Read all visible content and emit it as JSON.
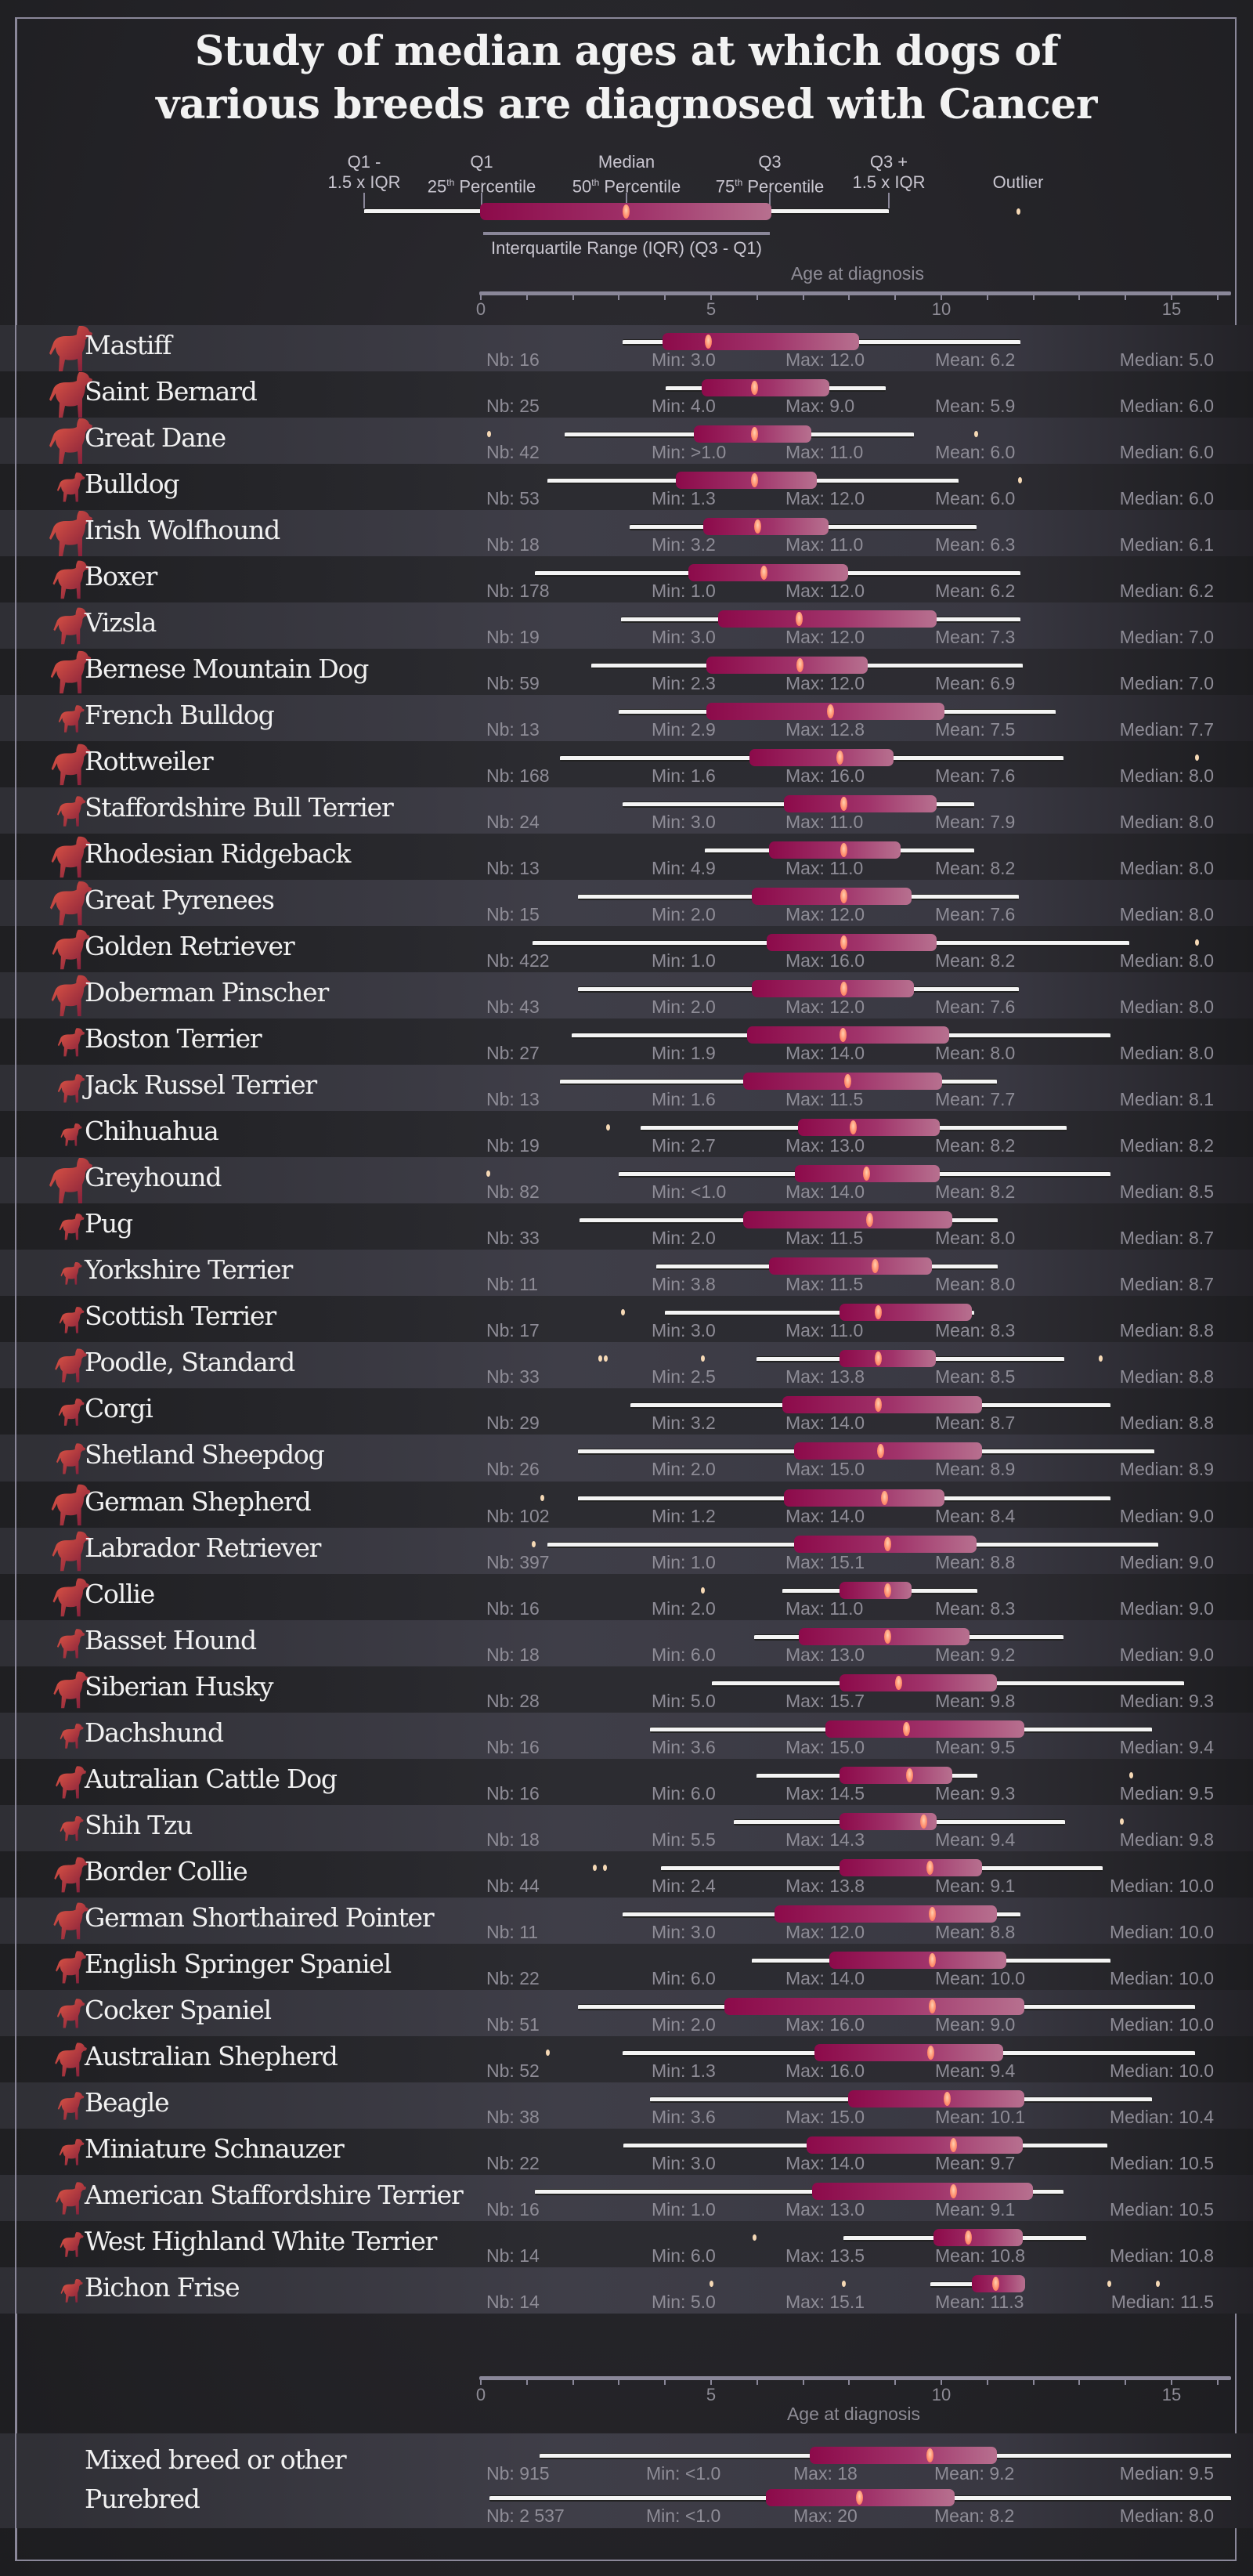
{
  "title_line1": "Study of median ages at which dogs of",
  "title_line2": "various breeds are diagnosed with Cancer",
  "legend": {
    "q1_minus": "Q1 -",
    "q1_minus_sub": "1.5 x IQR",
    "q1": "Q1",
    "q1_sub_num": "25",
    "q1_sub_sup": "th",
    "q1_sub_rest": " Percentile",
    "median": "Median",
    "median_sub_num": "50",
    "median_sub_sup": "th",
    "median_sub_rest": " Percentile",
    "q3": "Q3",
    "q3_sub_num": "75",
    "q3_sub_sup": "th",
    "q3_sub_rest": " Percentile",
    "q3_plus": "Q3 +",
    "q3_plus_sub": "1.5 x IQR",
    "outlier": "Outlier",
    "iqr": "Interquartile Range (IQR) (Q3 - Q1)"
  },
  "axis": {
    "title": "Age at diagnosis",
    "ticks": [
      "0",
      "5",
      "10",
      "15"
    ]
  },
  "colors": {
    "background": "#1c1c1f",
    "box_start": "#8c0a4a",
    "box_end": "#b7708f",
    "median_marker": "#ff8a6a",
    "whisker": "#f4f4f4",
    "outlier": "#f6d9b5",
    "icon_start": "#e65a45",
    "icon_end": "#7a1a3a",
    "frame": "#8a8799"
  },
  "chart_data": {
    "type": "boxplot",
    "title": "Study of median ages at which dogs of various breeds are diagnosed with Cancer",
    "xlabel": "Age at diagnosis",
    "ylabel": "",
    "xlim": [
      0,
      16.3
    ],
    "xticks": [
      0,
      5,
      10,
      15
    ],
    "grid": false,
    "legend_position": "top",
    "columns": [
      "breed",
      "nb",
      "min",
      "max",
      "mean",
      "median",
      "whisker_low",
      "q1",
      "median_pos",
      "q3",
      "whisker_high",
      "outliers"
    ],
    "rows": [
      {
        "breed": "Mastiff",
        "size": 1.0,
        "nb": "16",
        "min": "3.0",
        "max": "12.0",
        "mean": "6.2",
        "median": "5.0",
        "wl": 3.07,
        "q1": 3.94,
        "med": 4.93,
        "q3": 8.22,
        "wh": 11.72,
        "outliers": []
      },
      {
        "breed": "Saint Bernard",
        "size": 1.0,
        "nb": "25",
        "min": "4.0",
        "max": "9.0",
        "mean": "5.9",
        "median": "6.0",
        "wl": 4.02,
        "q1": 4.8,
        "med": 5.94,
        "q3": 7.57,
        "wh": 8.8,
        "outliers": []
      },
      {
        "breed": "Great Dane",
        "size": 1.0,
        "nb": "42",
        "min": ">1.0",
        "max": "11.0",
        "mean": "6.0",
        "median": "6.0",
        "wl": 1.82,
        "q1": 4.62,
        "med": 5.94,
        "q3": 7.17,
        "wh": 9.41,
        "outliers": [
          0.17,
          10.75
        ]
      },
      {
        "breed": "Bulldog",
        "size": 0.45,
        "nb": "53",
        "min": "1.3",
        "max": "12.0",
        "mean": "6.0",
        "median": "6.0",
        "wl": 1.44,
        "q1": 4.23,
        "med": 5.94,
        "q3": 7.3,
        "wh": 10.37,
        "outliers": [
          11.7
        ]
      },
      {
        "breed": "Irish Wolfhound",
        "size": 1.0,
        "nb": "18",
        "min": "3.2",
        "max": "11.0",
        "mean": "6.3",
        "median": "6.1",
        "wl": 3.23,
        "q1": 4.83,
        "med": 6.0,
        "q3": 7.55,
        "wh": 10.77,
        "outliers": []
      },
      {
        "breed": "Boxer",
        "size": 0.75,
        "nb": "178",
        "min": "1.0",
        "max": "12.0",
        "mean": "6.2",
        "median": "6.2",
        "wl": 1.17,
        "q1": 4.51,
        "med": 6.14,
        "q3": 7.98,
        "wh": 11.72,
        "outliers": []
      },
      {
        "breed": "Vizsla",
        "size": 0.7,
        "nb": "19",
        "min": "3.0",
        "max": "12.0",
        "mean": "7.3",
        "median": "7.0",
        "wl": 3.05,
        "q1": 5.16,
        "med": 6.9,
        "q3": 9.9,
        "wh": 11.72,
        "outliers": []
      },
      {
        "breed": "Bernese Mountain Dog",
        "size": 0.9,
        "nb": "59",
        "min": "2.3",
        "max": "12.0",
        "mean": "6.9",
        "median": "7.0",
        "wl": 2.39,
        "q1": 4.9,
        "med": 6.92,
        "q3": 8.4,
        "wh": 11.77,
        "outliers": []
      },
      {
        "breed": "French Bulldog",
        "size": 0.38,
        "nb": "13",
        "min": "2.9",
        "max": "12.8",
        "mean": "7.5",
        "median": "7.7",
        "wl": 2.99,
        "q1": 4.9,
        "med": 7.59,
        "q3": 10.06,
        "wh": 12.48,
        "outliers": []
      },
      {
        "breed": "Rottweiler",
        "size": 0.85,
        "nb": "168",
        "min": "1.6",
        "max": "16.0",
        "mean": "7.6",
        "median": "8.0",
        "wl": 1.71,
        "q1": 5.84,
        "med": 7.79,
        "q3": 8.96,
        "wh": 12.65,
        "outliers": [
          15.54
        ]
      },
      {
        "breed": "Staffordshire Bull Terrier",
        "size": 0.48,
        "nb": "24",
        "min": "3.0",
        "max": "11.0",
        "mean": "7.9",
        "median": "8.0",
        "wl": 3.07,
        "q1": 6.59,
        "med": 7.87,
        "q3": 9.9,
        "wh": 10.72,
        "outliers": []
      },
      {
        "breed": "Rhodesian Ridgeback",
        "size": 0.85,
        "nb": "13",
        "min": "4.9",
        "max": "11.0",
        "mean": "8.2",
        "median": "8.0",
        "wl": 4.86,
        "q1": 6.25,
        "med": 7.87,
        "q3": 9.11,
        "wh": 10.72,
        "outliers": []
      },
      {
        "breed": "Great Pyrenees",
        "size": 0.95,
        "nb": "15",
        "min": "2.0",
        "max": "12.0",
        "mean": "7.6",
        "median": "8.0",
        "wl": 2.11,
        "q1": 5.89,
        "med": 7.87,
        "q3": 9.36,
        "wh": 11.69,
        "outliers": []
      },
      {
        "breed": "Golden Retriever",
        "size": 0.8,
        "nb": "422",
        "min": "1.0",
        "max": "16.0",
        "mean": "8.2",
        "median": "8.0",
        "wl": 1.12,
        "q1": 6.2,
        "med": 7.87,
        "q3": 9.9,
        "wh": 14.08,
        "outliers": [
          15.54
        ]
      },
      {
        "breed": "Doberman Pinscher",
        "size": 0.85,
        "nb": "43",
        "min": "2.0",
        "max": "12.0",
        "mean": "7.6",
        "median": "8.0",
        "wl": 2.11,
        "q1": 5.89,
        "med": 7.87,
        "q3": 9.41,
        "wh": 11.69,
        "outliers": []
      },
      {
        "breed": "Boston Terrier",
        "size": 0.42,
        "nb": "27",
        "min": "1.9",
        "max": "14.0",
        "mean": "8.0",
        "median": "8.0",
        "wl": 1.98,
        "q1": 5.78,
        "med": 7.85,
        "q3": 10.17,
        "wh": 13.67,
        "outliers": []
      },
      {
        "breed": "Jack Russel Terrier",
        "size": 0.42,
        "nb": "13",
        "min": "1.6",
        "max": "11.5",
        "mean": "7.7",
        "median": "8.1",
        "wl": 1.71,
        "q1": 5.7,
        "med": 7.96,
        "q3": 10.02,
        "wh": 11.21,
        "outliers": []
      },
      {
        "breed": "Chihuahua",
        "size": 0.22,
        "nb": "19",
        "min": "2.7",
        "max": "13.0",
        "mean": "8.2",
        "median": "8.2",
        "wl": 3.47,
        "q1": 6.89,
        "med": 8.07,
        "q3": 9.96,
        "wh": 12.72,
        "outliers": [
          2.75
        ]
      },
      {
        "breed": "Greyhound",
        "size": 1.0,
        "nb": "82",
        "min": "<1.0",
        "max": "14.0",
        "mean": "8.2",
        "median": "8.5",
        "wl": 2.99,
        "q1": 6.82,
        "med": 8.36,
        "q3": 9.96,
        "wh": 13.67,
        "outliers": [
          0.15
        ]
      },
      {
        "breed": "Pug",
        "size": 0.35,
        "nb": "33",
        "min": "2.0",
        "max": "11.5",
        "mean": "8.0",
        "median": "8.7",
        "wl": 2.15,
        "q1": 5.69,
        "med": 8.44,
        "q3": 10.23,
        "wh": 11.23,
        "outliers": []
      },
      {
        "breed": "Yorkshire Terrier",
        "size": 0.22,
        "nb": "11",
        "min": "3.8",
        "max": "11.5",
        "mean": "8.0",
        "median": "8.7",
        "wl": 3.81,
        "q1": 6.25,
        "med": 8.55,
        "q3": 9.8,
        "wh": 11.23,
        "outliers": []
      },
      {
        "breed": "Scottish Terrier",
        "size": 0.35,
        "nb": "17",
        "min": "3.0",
        "max": "11.0",
        "mean": "8.3",
        "median": "8.8",
        "wl": 3.99,
        "q1": 7.79,
        "med": 8.63,
        "q3": 10.66,
        "wh": 10.72,
        "outliers": [
          3.07
        ]
      },
      {
        "breed": "Poodle, Standard",
        "size": 0.6,
        "nb": "33",
        "min": "2.5",
        "max": "13.8",
        "mean": "8.5",
        "median": "8.8",
        "wl": 5.98,
        "q1": 7.79,
        "med": 8.63,
        "q3": 9.88,
        "wh": 12.67,
        "outliers": [
          2.58,
          2.71,
          4.82,
          13.45
        ]
      },
      {
        "breed": "Corgi",
        "size": 0.38,
        "nb": "29",
        "min": "3.2",
        "max": "14.0",
        "mean": "8.7",
        "median": "8.8",
        "wl": 3.25,
        "q1": 6.54,
        "med": 8.63,
        "q3": 10.88,
        "wh": 13.67,
        "outliers": []
      },
      {
        "breed": "Shetland Sheepdog",
        "size": 0.5,
        "nb": "26",
        "min": "2.0",
        "max": "15.0",
        "mean": "8.9",
        "median": "8.9",
        "wl": 2.11,
        "q1": 6.81,
        "med": 8.68,
        "q3": 10.88,
        "wh": 14.62,
        "outliers": []
      },
      {
        "breed": "German Shepherd",
        "size": 0.85,
        "nb": "102",
        "min": "1.2",
        "max": "14.0",
        "mean": "8.4",
        "median": "9.0",
        "wl": 2.11,
        "q1": 6.59,
        "med": 8.76,
        "q3": 10.06,
        "wh": 13.67,
        "outliers": [
          1.33
        ]
      },
      {
        "breed": "Labrador Retriever",
        "size": 0.8,
        "nb": "397",
        "min": "1.0",
        "max": "15.1",
        "mean": "8.8",
        "median": "9.0",
        "wl": 1.44,
        "q1": 6.81,
        "med": 8.82,
        "q3": 10.77,
        "wh": 14.71,
        "outliers": [
          1.14
        ]
      },
      {
        "breed": "Collie",
        "size": 0.75,
        "nb": "16",
        "min": "2.0",
        "max": "11.0",
        "mean": "8.3",
        "median": "9.0",
        "wl": 6.54,
        "q1": 7.79,
        "med": 8.82,
        "q3": 9.36,
        "wh": 10.79,
        "outliers": [
          4.82
        ]
      },
      {
        "breed": "Basset Hound",
        "size": 0.45,
        "nb": "18",
        "min": "6.0",
        "max": "13.0",
        "mean": "9.2",
        "median": "9.0",
        "wl": 5.94,
        "q1": 6.9,
        "med": 8.82,
        "q3": 10.61,
        "wh": 12.65,
        "outliers": []
      },
      {
        "breed": "Siberian Husky",
        "size": 0.7,
        "nb": "28",
        "min": "5.0",
        "max": "15.7",
        "mean": "9.8",
        "median": "9.3",
        "wl": 5.01,
        "q1": 7.79,
        "med": 9.07,
        "q3": 11.2,
        "wh": 15.27,
        "outliers": []
      },
      {
        "breed": "Dachshund",
        "size": 0.3,
        "nb": "16",
        "min": "3.6",
        "max": "15.0",
        "mean": "9.5",
        "median": "9.4",
        "wl": 3.67,
        "q1": 7.49,
        "med": 9.23,
        "q3": 11.8,
        "wh": 14.57,
        "outliers": []
      },
      {
        "breed": "Autralian Cattle Dog",
        "size": 0.55,
        "nb": "16",
        "min": "6.0",
        "max": "14.5",
        "mean": "9.3",
        "median": "9.5",
        "wl": 5.98,
        "q1": 7.79,
        "med": 9.31,
        "q3": 10.23,
        "wh": 10.79,
        "outliers": [
          14.11
        ]
      },
      {
        "breed": "Shih Tzu",
        "size": 0.3,
        "nb": "18",
        "min": "5.5",
        "max": "14.3",
        "mean": "9.4",
        "median": "9.8",
        "wl": 5.49,
        "q1": 7.79,
        "med": 9.61,
        "q3": 9.9,
        "wh": 12.69,
        "outliers": [
          13.92
        ]
      },
      {
        "breed": "Border Collie",
        "size": 0.65,
        "nb": "44",
        "min": "2.4",
        "max": "13.8",
        "mean": "9.1",
        "median": "10.0",
        "wl": 3.92,
        "q1": 7.79,
        "med": 9.74,
        "q3": 10.88,
        "wh": 13.51,
        "outliers": [
          2.47,
          2.69
        ]
      },
      {
        "breed": "German Shorthaired Pointer",
        "size": 0.7,
        "nb": "11",
        "min": "3.0",
        "max": "12.0",
        "mean": "8.8",
        "median": "10.0",
        "wl": 3.07,
        "q1": 6.38,
        "med": 9.79,
        "q3": 11.2,
        "wh": 11.72,
        "outliers": []
      },
      {
        "breed": "English Springer Spaniel",
        "size": 0.55,
        "nb": "22",
        "min": "6.0",
        "max": "14.0",
        "mean": "10.0",
        "median": "10.0",
        "wl": 5.89,
        "q1": 7.57,
        "med": 9.79,
        "q3": 11.42,
        "wh": 13.67,
        "outliers": []
      },
      {
        "breed": "Cocker Spaniel",
        "size": 0.45,
        "nb": "51",
        "min": "2.0",
        "max": "16.0",
        "mean": "9.0",
        "median": "10.0",
        "wl": 2.11,
        "q1": 5.29,
        "med": 9.79,
        "q3": 11.8,
        "wh": 15.51,
        "outliers": []
      },
      {
        "breed": "Australian Shepherd",
        "size": 0.6,
        "nb": "52",
        "min": "1.3",
        "max": "16.0",
        "mean": "9.4",
        "median": "10.0",
        "wl": 3.07,
        "q1": 7.24,
        "med": 9.77,
        "q3": 11.35,
        "wh": 15.51,
        "outliers": [
          1.44
        ]
      },
      {
        "breed": "Beagle",
        "size": 0.4,
        "nb": "38",
        "min": "3.6",
        "max": "15.0",
        "mean": "10.1",
        "median": "10.4",
        "wl": 3.67,
        "q1": 7.98,
        "med": 10.12,
        "q3": 11.8,
        "wh": 14.57,
        "outliers": []
      },
      {
        "breed": "Miniature Schnauzer",
        "size": 0.35,
        "nb": "22",
        "min": "3.0",
        "max": "14.0",
        "mean": "9.7",
        "median": "10.5",
        "wl": 3.09,
        "q1": 7.08,
        "med": 10.26,
        "q3": 11.77,
        "wh": 13.61,
        "outliers": []
      },
      {
        "breed": "American Staffordshire Terrier",
        "size": 0.55,
        "nb": "16",
        "min": "1.0",
        "max": "13.0",
        "mean": "9.1",
        "median": "10.5",
        "wl": 1.17,
        "q1": 7.19,
        "med": 10.26,
        "q3": 11.99,
        "wh": 12.65,
        "outliers": []
      },
      {
        "breed": "West Highland White Terrier",
        "size": 0.3,
        "nb": "14",
        "min": "6.0",
        "max": "13.5",
        "mean": "10.8",
        "median": "10.8",
        "wl": 7.87,
        "q1": 9.83,
        "med": 10.57,
        "q3": 11.77,
        "wh": 13.14,
        "outliers": [
          5.94
        ]
      },
      {
        "breed": "Bichon Frise",
        "size": 0.25,
        "nb": "14",
        "min": "5.0",
        "max": "15.1",
        "mean": "11.3",
        "median": "11.5",
        "wl": 9.76,
        "q1": 10.66,
        "med": 11.18,
        "q3": 11.82,
        "wh": 11.82,
        "outliers": [
          5.0,
          7.87,
          13.64,
          14.7
        ]
      }
    ],
    "summary_rows": [
      {
        "breed": "Mixed breed or other",
        "nb": "915",
        "min": "<1.0",
        "max": "18",
        "mean": "9.2",
        "median": "9.5",
        "wl": 1.27,
        "q1": 7.14,
        "med": 9.74,
        "q3": 11.21,
        "wh": 16.3,
        "outliers": []
      },
      {
        "breed": "Purebred",
        "nb": "2 537",
        "min": "<1.0",
        "max": "20",
        "mean": "8.2",
        "median": "8.0",
        "wl": 0.19,
        "q1": 6.19,
        "med": 8.21,
        "q3": 10.29,
        "wh": 16.3,
        "outliers": []
      }
    ]
  },
  "labels": {
    "nb_prefix": "Nb: ",
    "min_prefix": "Min: ",
    "max_prefix": "Max: ",
    "mean_prefix": "Mean: ",
    "median_prefix": "Median: "
  }
}
